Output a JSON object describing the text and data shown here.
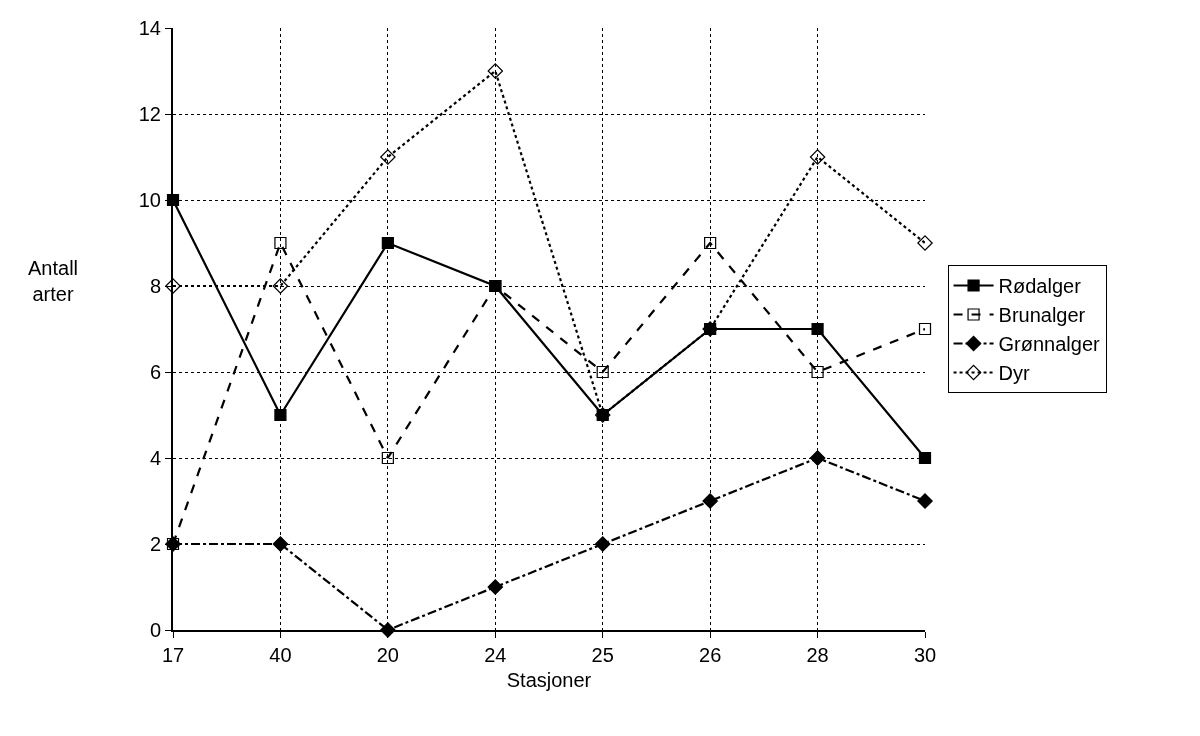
{
  "chart_data": {
    "type": "line",
    "xlabel": "Stasjoner",
    "ylabel": "Antall arter",
    "categories": [
      "17",
      "40",
      "20",
      "24",
      "25",
      "26",
      "28",
      "30"
    ],
    "ylim": [
      0,
      14
    ],
    "yticks": [
      0,
      2,
      4,
      6,
      8,
      10,
      12,
      14
    ],
    "grid": true,
    "legend": "right",
    "series": [
      {
        "name": "Rødalger",
        "color": "#000000",
        "marker": "square",
        "line_style": "solid",
        "values": [
          10,
          5,
          9,
          8,
          5,
          7,
          7,
          4
        ]
      },
      {
        "name": "Brunalger",
        "color": "#000000",
        "marker": "square-open",
        "line_style": "dashed",
        "values": [
          2,
          9,
          4,
          8,
          6,
          9,
          6,
          7
        ]
      },
      {
        "name": "Grønnalger",
        "color": "#000000",
        "marker": "diamond",
        "line_style": "dashdot",
        "values": [
          2,
          2,
          0,
          1,
          2,
          3,
          4,
          3
        ]
      },
      {
        "name": "Dyr",
        "color": "#000000",
        "marker": "diamond-open",
        "line_style": "dotted",
        "values": [
          8,
          8,
          11,
          13,
          5,
          7,
          11,
          9
        ]
      }
    ]
  }
}
